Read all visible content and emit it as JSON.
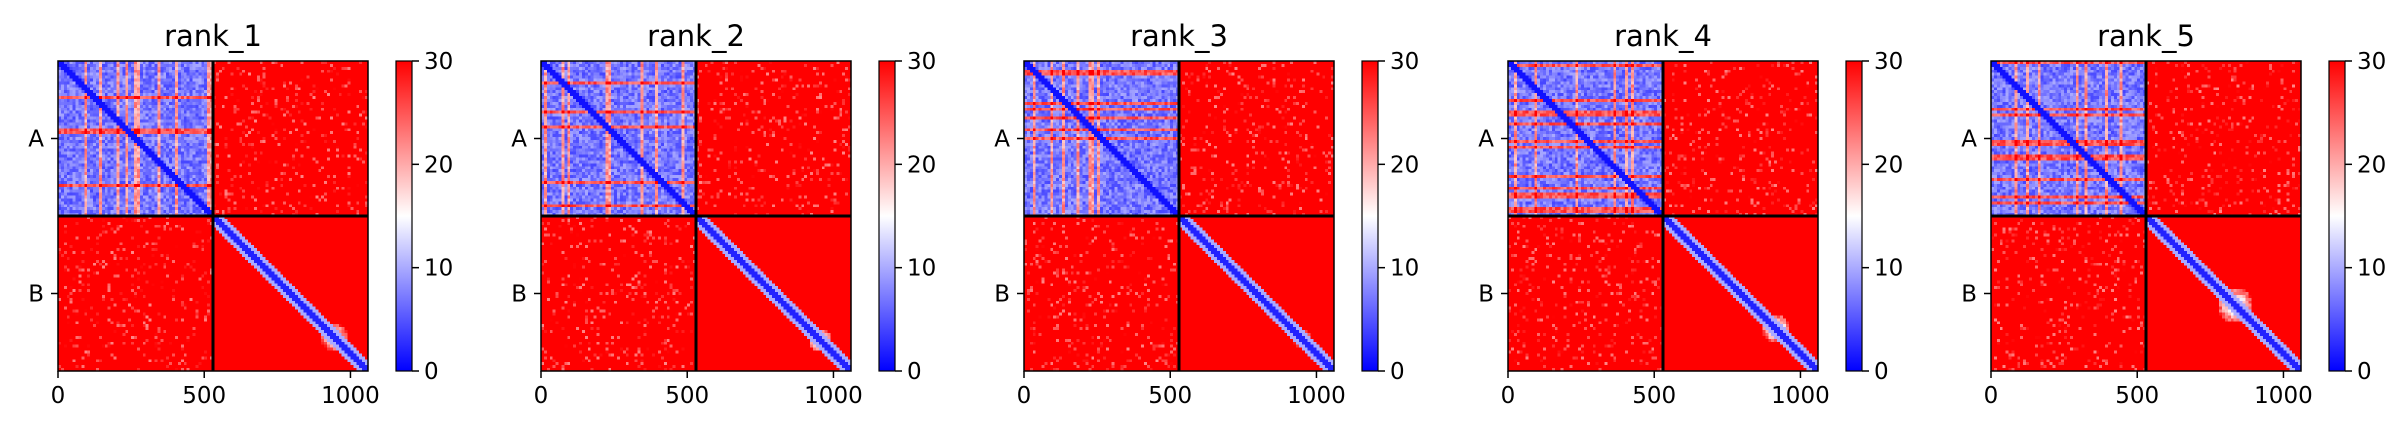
{
  "chart_data": {
    "type": "heatmap",
    "panels": [
      {
        "title": "rank_1",
        "chain_labels": [
          "A",
          "B"
        ],
        "chain_boundary": 530,
        "x_range": [
          0,
          1060
        ],
        "x_ticks": [
          0,
          500,
          1000
        ],
        "colorbar": {
          "range": [
            0,
            30
          ],
          "ticks": [
            0,
            10,
            20,
            30
          ]
        },
        "diag_blobs": [
          {
            "center": 940,
            "spread": 45
          }
        ]
      },
      {
        "title": "rank_2",
        "chain_labels": [
          "A",
          "B"
        ],
        "chain_boundary": 530,
        "x_range": [
          0,
          1060
        ],
        "x_ticks": [
          0,
          500,
          1000
        ],
        "colorbar": {
          "range": [
            0,
            30
          ],
          "ticks": [
            0,
            10,
            20,
            30
          ]
        },
        "diag_blobs": [
          {
            "center": 950,
            "spread": 40
          }
        ]
      },
      {
        "title": "rank_3",
        "chain_labels": [
          "A",
          "B"
        ],
        "chain_boundary": 530,
        "x_range": [
          0,
          1060
        ],
        "x_ticks": [
          0,
          500,
          1000
        ],
        "colorbar": {
          "range": [
            0,
            30
          ],
          "ticks": [
            0,
            10,
            20,
            30
          ]
        },
        "diag_blobs": [
          {
            "center": 945,
            "spread": 30
          }
        ]
      },
      {
        "title": "rank_4",
        "chain_labels": [
          "A",
          "B"
        ],
        "chain_boundary": 530,
        "x_range": [
          0,
          1060
        ],
        "x_ticks": [
          0,
          500,
          1000
        ],
        "colorbar": {
          "range": [
            0,
            30
          ],
          "ticks": [
            0,
            10,
            20,
            30
          ]
        },
        "diag_blobs": [
          {
            "center": 910,
            "spread": 50
          }
        ]
      },
      {
        "title": "rank_5",
        "chain_labels": [
          "A",
          "B"
        ],
        "chain_boundary": 530,
        "x_range": [
          0,
          1060
        ],
        "x_ticks": [
          0,
          500,
          1000
        ],
        "colorbar": {
          "range": [
            0,
            30
          ],
          "ticks": [
            0,
            10,
            20,
            30
          ]
        },
        "diag_blobs": [
          {
            "center": 830,
            "spread": 60
          }
        ]
      }
    ],
    "colormap": {
      "low": "#0000ff",
      "mid": "#ffffff",
      "high": "#ff0000"
    }
  }
}
